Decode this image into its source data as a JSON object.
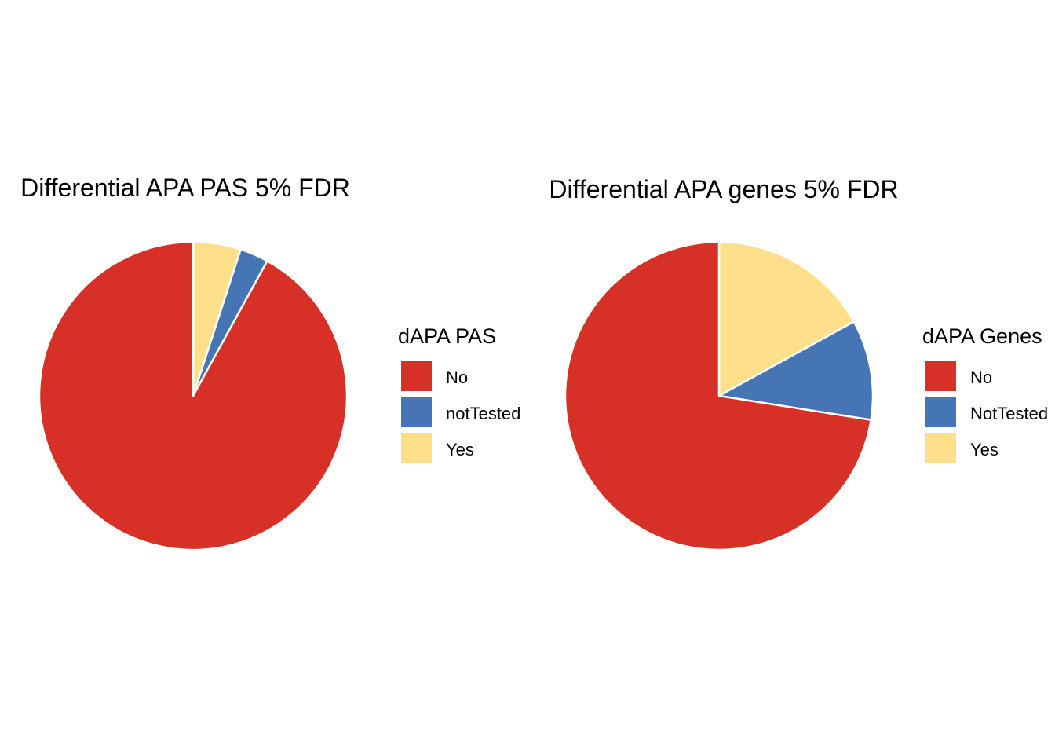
{
  "chart_data": [
    {
      "type": "pie",
      "title": "Differential APA PAS 5% FDR",
      "legend_title": "dAPA PAS",
      "legend_position": "right",
      "start": "top",
      "direction": "clockwise",
      "slices": [
        {
          "label": "Yes",
          "value": 5.0,
          "color": "#FEE08B"
        },
        {
          "label": "notTested",
          "value": 3.0,
          "color": "#4575B4"
        },
        {
          "label": "No",
          "value": 92.0,
          "color": "#D73027"
        }
      ],
      "legend_items": [
        {
          "label": "No",
          "color": "#D73027"
        },
        {
          "label": "notTested",
          "color": "#4575B4"
        },
        {
          "label": "Yes",
          "color": "#FEE08B"
        }
      ]
    },
    {
      "type": "pie",
      "title": "Differential APA genes 5% FDR",
      "legend_title": "dAPA Genes",
      "legend_position": "right",
      "start": "top",
      "direction": "clockwise",
      "slices": [
        {
          "label": "Yes",
          "value": 17.0,
          "color": "#FEE08B"
        },
        {
          "label": "NotTested",
          "value": 10.5,
          "color": "#4575B4"
        },
        {
          "label": "No",
          "value": 72.5,
          "color": "#D73027"
        }
      ],
      "legend_items": [
        {
          "label": "No",
          "color": "#D73027"
        },
        {
          "label": "NotTested",
          "color": "#4575B4"
        },
        {
          "label": "Yes",
          "color": "#FEE08B"
        }
      ]
    }
  ]
}
